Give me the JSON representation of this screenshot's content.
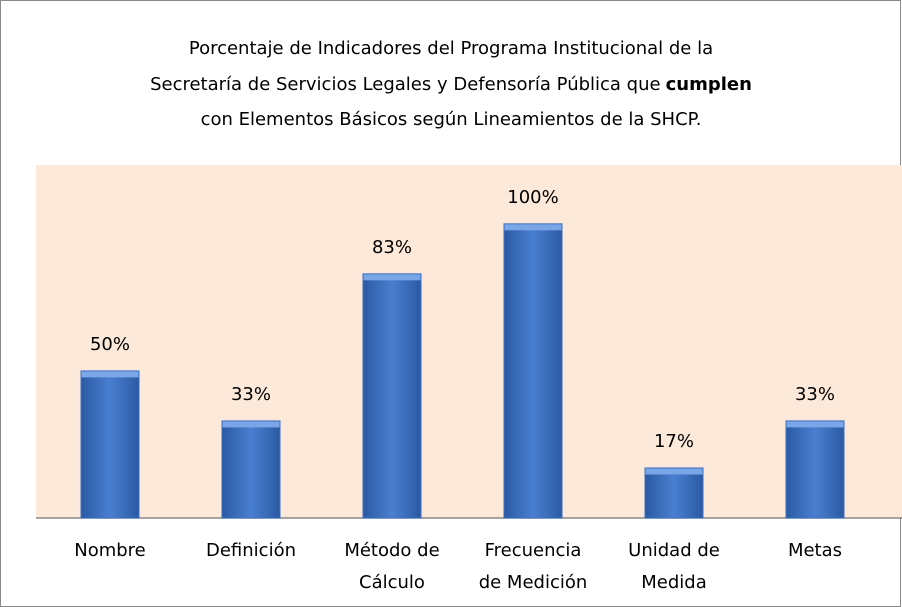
{
  "chart_data": {
    "type": "bar",
    "title": [
      "Porcentaje de Indicadores del Programa Institucional de la",
      "Secretaría de Servicios Legales y Defensoría Pública que",
      "cumplen",
      "con Elementos Básicos según Lineamientos de la SHCP."
    ],
    "categories": [
      [
        "Nombre"
      ],
      [
        "Definición"
      ],
      [
        "Método de",
        "Cálculo"
      ],
      [
        "Frecuencia",
        "de Medición"
      ],
      [
        "Unidad de",
        "Medida"
      ],
      [
        "Metas"
      ]
    ],
    "values": [
      50,
      33,
      83,
      100,
      17,
      33
    ],
    "value_labels": [
      "50%",
      "33%",
      "83%",
      "100%",
      "17%",
      "33%"
    ],
    "color": "#3a6fc4",
    "ylim": [
      0,
      120
    ]
  }
}
